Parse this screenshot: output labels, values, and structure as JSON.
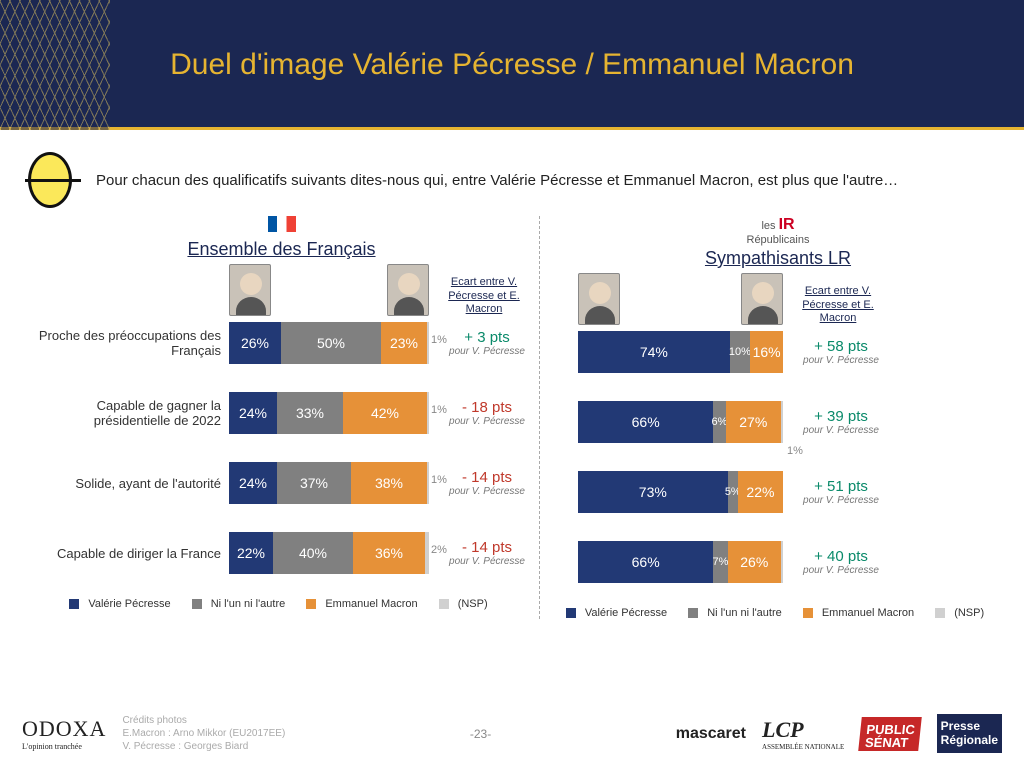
{
  "colors": {
    "navy": "#223975",
    "gray": "#808080",
    "orange": "#e69138",
    "light": "#d0d0d0",
    "pos": "#0a8a6a",
    "neg": "#c0392b"
  },
  "header": {
    "title": "Duel d'image Valérie Pécresse / Emmanuel Macron"
  },
  "intro": "Pour chacun des qualificatifs suivants dites-nous qui, entre Valérie Pécresse et Emmanuel Macron, est plus que l'autre…",
  "columns": {
    "left": {
      "title": "Ensemble des Français",
      "ecart_head": "Ecart entre V. Pécresse et E. Macron"
    },
    "right": {
      "title": "Sympathisants LR",
      "ecart_head": "Ecart entre V. Pécresse et E. Macron",
      "badge_top": "les",
      "badge_main": "Républicains"
    }
  },
  "row_labels": [
    "Proche des préoccupations des Français",
    "Capable de gagner la présidentielle de 2022",
    "Solide, ayant de l'autorité",
    "Capable de diriger la France"
  ],
  "left_rows": [
    {
      "vp": 26,
      "ni": 50,
      "em": 23,
      "nsp": 1,
      "ecart": "+ 3 pts",
      "ecart_color": "pos"
    },
    {
      "vp": 24,
      "ni": 33,
      "em": 42,
      "nsp": 1,
      "ecart": "- 18 pts",
      "ecart_color": "neg"
    },
    {
      "vp": 24,
      "ni": 37,
      "em": 38,
      "nsp": 1,
      "ecart": "- 14 pts",
      "ecart_color": "neg"
    },
    {
      "vp": 22,
      "ni": 40,
      "em": 36,
      "nsp": 2,
      "ecart": "- 14 pts",
      "ecart_color": "neg"
    }
  ],
  "right_rows": [
    {
      "vp": 74,
      "ni": 10,
      "em": 16,
      "nsp": 0,
      "nsp_label": "",
      "ecart": "+ 58 pts",
      "ecart_color": "pos"
    },
    {
      "vp": 66,
      "ni": 6,
      "em": 27,
      "nsp": 1,
      "nsp_label": "1%",
      "ecart": "+ 39 pts",
      "ecart_color": "pos"
    },
    {
      "vp": 73,
      "ni": 5,
      "em": 22,
      "nsp": 0,
      "nsp_label": "",
      "ecart": "+ 51 pts",
      "ecart_color": "pos"
    },
    {
      "vp": 66,
      "ni": 7,
      "em": 26,
      "nsp": 1,
      "nsp_label": "",
      "ecart": "+ 40 pts",
      "ecart_color": "pos"
    }
  ],
  "legend": {
    "vp": "Valérie Pécresse",
    "ni": "Ni l'un ni l'autre",
    "em": "Emmanuel Macron",
    "nsp": "(NSP)"
  },
  "ecart_sub": "pour V. Pécresse",
  "footer": {
    "odoxa": "ODOXA",
    "odoxa_sub": "L'opinion tranchée",
    "credits_title": "Crédits photos",
    "credit1": "E.Macron : Arno Mikkor (EU2017EE)",
    "credit2": "V. Pécresse : Georges Biard",
    "page": "-23-",
    "logos": {
      "mascaret": "mascaret",
      "lcp": "LCP",
      "lcp_sub": "ASSEMBLÉE NATIONALE",
      "ps1": "PUBLIC",
      "ps2": "SÉNAT",
      "pr1": "Presse",
      "pr2": "Régionale"
    }
  }
}
